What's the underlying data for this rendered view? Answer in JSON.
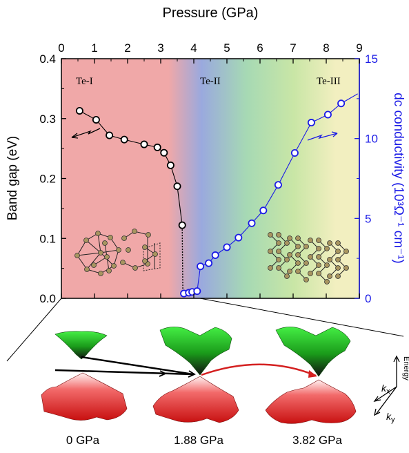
{
  "chart_data": {
    "type": "scatter",
    "title": "",
    "xlabel": "Pressure (GPa)",
    "ylabel_left": "Band gap (eV)",
    "ylabel_right": "dc conductivity (10³Ω⁻¹ cm⁻¹)",
    "xlim": [
      0,
      9
    ],
    "ylim_left": [
      0,
      0.4
    ],
    "ylim_right": [
      0,
      15
    ],
    "x_ticks": [
      "0",
      "1",
      "2",
      "3",
      "4",
      "5",
      "6",
      "7",
      "8",
      "9"
    ],
    "y_left_ticks": [
      "0.0",
      "0.1",
      "0.2",
      "0.3",
      "0.4"
    ],
    "y_right_ticks": [
      "0",
      "5",
      "10",
      "15"
    ],
    "phase_labels": [
      "Te-I",
      "Te-II",
      "Te-III"
    ],
    "series": [
      {
        "axis": "left",
        "color": "#000000",
        "x": [
          0.55,
          1.05,
          1.45,
          1.9,
          2.5,
          2.9,
          3.1,
          3.3,
          3.5,
          3.65
        ],
        "y": [
          0.313,
          0.298,
          0.272,
          0.265,
          0.257,
          0.252,
          0.243,
          0.222,
          0.187,
          0.122
        ]
      },
      {
        "axis": "right",
        "color": "#1a1ae6",
        "x": [
          3.7,
          3.85,
          3.95,
          4.1,
          4.2,
          4.45,
          4.65,
          5.0,
          5.35,
          5.75,
          6.1,
          6.55,
          7.05,
          7.55,
          8.05,
          8.45
        ],
        "y": [
          0.3,
          0.35,
          0.4,
          0.45,
          2.0,
          2.2,
          2.7,
          3.2,
          3.8,
          4.7,
          5.5,
          7.1,
          9.1,
          11.0,
          11.5,
          12.2
        ]
      }
    ]
  },
  "bottom_labels": [
    "0 GPa",
    "1.88 GPa",
    "3.82 GPa"
  ],
  "axes3d": {
    "energy": "Energy",
    "kx": "k",
    "kx_sub": "x",
    "ky": "k",
    "ky_sub": "y"
  },
  "colors": {
    "te1": "#f0a8a8",
    "te2": "#9aa9de",
    "te3": "#f2efc0",
    "gap_series": "#000000",
    "cond_series": "#1a1ae6",
    "conduction_band": "#2bd12b",
    "valence_band": "#e02020",
    "arrow_red": "#d42020"
  }
}
